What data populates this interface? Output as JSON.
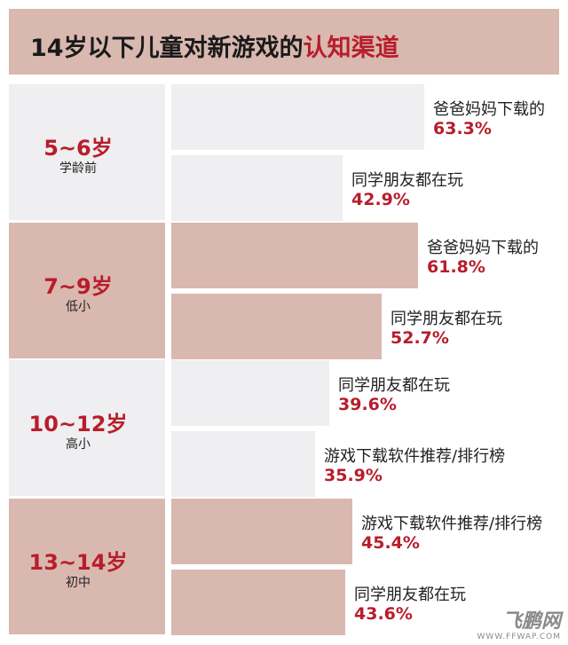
{
  "title": {
    "main": "14岁以下儿童对新游戏的",
    "highlight": "认知渠道"
  },
  "colors": {
    "light_panel": "#efeef0",
    "rose_panel": "#d9b8b0",
    "accent_red": "#b81d2b"
  },
  "chart_data": {
    "type": "bar",
    "title": "14岁以下儿童对新游戏的认知渠道",
    "unit": "%",
    "groups": [
      {
        "label": "5~6岁",
        "sub": "学龄前",
        "shade": "light",
        "bars": [
          {
            "name": "爸爸妈妈下载的",
            "value_text": "63.3%",
            "value": 63.3
          },
          {
            "name": "同学朋友都在玩",
            "value_text": "42.9%",
            "value": 42.9
          }
        ]
      },
      {
        "label": "7~9岁",
        "sub": "低小",
        "shade": "rose",
        "bars": [
          {
            "name": "爸爸妈妈下载的",
            "value_text": "61.8%",
            "value": 61.8
          },
          {
            "name": "同学朋友都在玩",
            "value_text": "52.7%",
            "value": 52.7
          }
        ]
      },
      {
        "label": "10~12岁",
        "sub": "高小",
        "shade": "light",
        "bars": [
          {
            "name": "同学朋友都在玩",
            "value_text": "39.6%",
            "value": 39.6
          },
          {
            "name": "游戏下载软件推荐/排行榜",
            "value_text": "35.9%",
            "value": 35.9
          }
        ]
      },
      {
        "label": "13~14岁",
        "sub": "初中",
        "shade": "rose",
        "bars": [
          {
            "name": "游戏下载软件推荐/排行榜",
            "value_text": "45.4%",
            "value": 45.4
          },
          {
            "name": "同学朋友都在玩",
            "value_text": "43.6%",
            "value": 43.6
          }
        ]
      }
    ]
  },
  "watermark": {
    "main": "飞鹏网",
    "url": "WWW.FFWAP.COM"
  }
}
